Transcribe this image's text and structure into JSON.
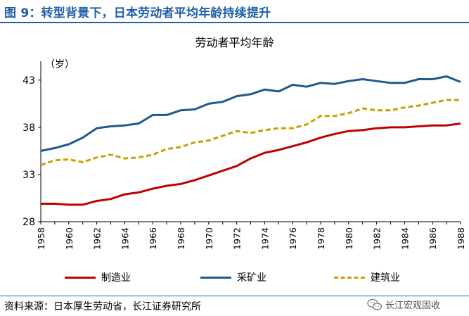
{
  "header": {
    "title": "图 9：转型背景下，日本劳动者平均年龄持续提升"
  },
  "footer": {
    "source": "资料来源：日本厚生劳动省，长江证券研究所",
    "watermark": "长江宏观固收"
  },
  "chart_data": {
    "type": "line",
    "title": "劳动者平均年龄",
    "ylabel": "（岁）",
    "ylim": [
      28,
      45
    ],
    "yticks": [
      28,
      33,
      38,
      43
    ],
    "grid": false,
    "legend_position": "bottom",
    "x": [
      1958,
      1959,
      1960,
      1961,
      1962,
      1963,
      1964,
      1965,
      1966,
      1967,
      1968,
      1969,
      1970,
      1971,
      1972,
      1973,
      1974,
      1975,
      1976,
      1977,
      1978,
      1979,
      1980,
      1981,
      1982,
      1983,
      1984,
      1985,
      1986,
      1987,
      1988
    ],
    "xtick_labels": [
      "1958",
      "1960",
      "1962",
      "1964",
      "1966",
      "1968",
      "1970",
      "1972",
      "1974",
      "1976",
      "1978",
      "1980",
      "1982",
      "1984",
      "1986",
      "1988"
    ],
    "series": [
      {
        "name": "制造业",
        "color": "#c00000",
        "style": "solid",
        "values": [
          29.9,
          29.9,
          29.8,
          29.8,
          30.2,
          30.4,
          30.9,
          31.1,
          31.5,
          31.8,
          32.0,
          32.4,
          32.9,
          33.4,
          33.9,
          34.7,
          35.3,
          35.6,
          36.0,
          36.4,
          36.9,
          37.3,
          37.6,
          37.7,
          37.9,
          38.0,
          38.0,
          38.1,
          38.2,
          38.2,
          38.4
        ]
      },
      {
        "name": "采矿业",
        "color": "#1f5a8e",
        "style": "solid",
        "values": [
          35.5,
          35.8,
          36.2,
          36.9,
          37.9,
          38.1,
          38.2,
          38.4,
          39.3,
          39.3,
          39.8,
          39.9,
          40.5,
          40.7,
          41.3,
          41.5,
          42.0,
          41.8,
          42.5,
          42.3,
          42.7,
          42.6,
          42.9,
          43.1,
          42.9,
          42.7,
          42.7,
          43.1,
          43.1,
          43.4,
          42.8
        ]
      },
      {
        "name": "建筑业",
        "color": "#c8a000",
        "style": "dashed",
        "values": [
          34.0,
          34.5,
          34.6,
          34.3,
          34.8,
          35.1,
          34.7,
          34.8,
          35.1,
          35.7,
          35.9,
          36.4,
          36.6,
          37.1,
          37.6,
          37.4,
          37.7,
          37.9,
          37.9,
          38.3,
          39.2,
          39.2,
          39.5,
          40.0,
          39.8,
          39.8,
          40.1,
          40.3,
          40.6,
          40.9,
          40.9
        ]
      }
    ]
  }
}
